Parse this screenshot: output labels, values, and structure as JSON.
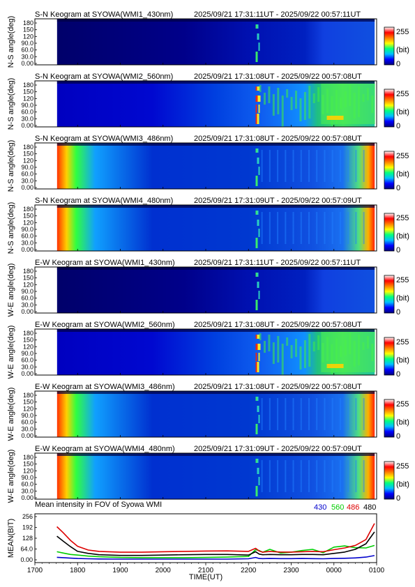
{
  "keograms": [
    {
      "title": "S-N Keogram at SYOWA(WMI1_430nm)",
      "time_range": "2025/09/21 17:31:11UT - 2025/09/22 00:57:11UT",
      "ylabel": "N-S angle(deg)",
      "edge": "low",
      "bursts": "weak",
      "diffuse": "none"
    },
    {
      "title": "S-N Keogram at SYOWA(WMI2_560nm)",
      "time_range": "2025/09/21 17:31:08UT - 2025/09/22 00:57:08UT",
      "ylabel": "N-S angle(deg)",
      "edge": "low",
      "bursts": "strong",
      "diffuse": "strong"
    },
    {
      "title": "S-N Keogram at SYOWA(WMI3_486nm)",
      "time_range": "2025/09/21 17:31:08UT - 2025/09/22 00:57:08UT",
      "ylabel": "N-S angle(deg)",
      "edge": "high",
      "bursts": "weak",
      "diffuse": "weak"
    },
    {
      "title": "S-N Keogram at SYOWA(WMI4_480nm)",
      "time_range": "2025/09/21 17:31:09UT - 2025/09/22 00:57:09UT",
      "ylabel": "N-S angle(deg)",
      "edge": "high",
      "bursts": "weak",
      "diffuse": "weak"
    },
    {
      "title": "E-W Keogram at SYOWA(WMI1_430nm)",
      "time_range": "2025/09/21 17:31:11UT - 2025/09/22 00:57:11UT",
      "ylabel": "W-E angle(deg)",
      "edge": "low",
      "bursts": "weak",
      "diffuse": "none"
    },
    {
      "title": "E-W Keogram at SYOWA(WMI2_560nm)",
      "time_range": "2025/09/21 17:31:08UT - 2025/09/22 00:57:08UT",
      "ylabel": "W-E angle(deg)",
      "edge": "low",
      "bursts": "strong",
      "diffuse": "strong"
    },
    {
      "title": "E-W Keogram at SYOWA(WMI3_486nm)",
      "time_range": "2025/09/21 17:31:08UT - 2025/09/22 00:57:08UT",
      "ylabel": "W-E angle(deg)",
      "edge": "high",
      "bursts": "weak",
      "diffuse": "weak"
    },
    {
      "title": "E-W Keogram at SYOWA(WMI4_480nm)",
      "time_range": "2025/09/21 17:31:09UT - 2025/09/22 00:57:09UT",
      "ylabel": "W-E angle(deg)",
      "edge": "high",
      "bursts": "weak",
      "diffuse": "weak"
    }
  ],
  "keogram_yticks": [
    "180",
    "150",
    "120",
    "90.0",
    "60.0",
    "30.0",
    "0.00"
  ],
  "colorbar": {
    "max_label": "255",
    "unit_label": "(bit)",
    "min_label": "0"
  },
  "colormap": [
    "#00007f",
    "#0000ff",
    "#00bfff",
    "#00ff80",
    "#ffff00",
    "#ff8000",
    "#ff0000",
    "#ffffff"
  ],
  "time_axis": {
    "labels": [
      "1700",
      "1800",
      "1900",
      "2000",
      "2100",
      "2200",
      "2300",
      "0000",
      "0100"
    ],
    "xlabel": "TIME(UT)"
  },
  "chart_data": {
    "type": "line",
    "title": "Mean intensity in FOV of Syowa WMI",
    "xlabel": "TIME(UT)",
    "ylabel": "MEAN(BIT)",
    "ylim": [
      0,
      256
    ],
    "yticks": [
      "256",
      "192",
      "128",
      "64.0",
      "0.00"
    ],
    "x": [
      "17:31",
      "17:40",
      "17:50",
      "18:00",
      "18:15",
      "18:30",
      "19:00",
      "19:30",
      "20:00",
      "20:30",
      "21:00",
      "21:30",
      "22:00",
      "22:10",
      "22:15",
      "22:20",
      "22:30",
      "22:45",
      "23:00",
      "23:15",
      "23:30",
      "23:45",
      "00:00",
      "00:15",
      "00:30",
      "00:45",
      "00:57"
    ],
    "series": [
      {
        "name": "430",
        "color": "#0000cc",
        "values": [
          15,
          13,
          10,
          8,
          6,
          5,
          4,
          4,
          4,
          4,
          4,
          4,
          6,
          14,
          8,
          7,
          8,
          7,
          7,
          8,
          7,
          6,
          8,
          9,
          11,
          16,
          25
        ]
      },
      {
        "name": "560",
        "color": "#00cc00",
        "values": [
          48,
          40,
          32,
          28,
          22,
          18,
          14,
          13,
          13,
          13,
          14,
          16,
          20,
          60,
          55,
          45,
          62,
          40,
          45,
          55,
          62,
          42,
          75,
          82,
          72,
          70,
          85
        ]
      },
      {
        "name": "486",
        "color": "#dd0000",
        "values": [
          196,
          160,
          115,
          80,
          58,
          50,
          45,
          45,
          48,
          50,
          52,
          53,
          50,
          68,
          52,
          45,
          50,
          46,
          46,
          48,
          50,
          48,
          60,
          70,
          85,
          120,
          215
        ]
      },
      {
        "name": "480",
        "color": "#000000",
        "values": [
          140,
          110,
          78,
          50,
          38,
          30,
          26,
          26,
          28,
          30,
          32,
          32,
          28,
          48,
          34,
          30,
          32,
          30,
          30,
          32,
          32,
          30,
          38,
          46,
          62,
          95,
          165
        ]
      }
    ]
  }
}
